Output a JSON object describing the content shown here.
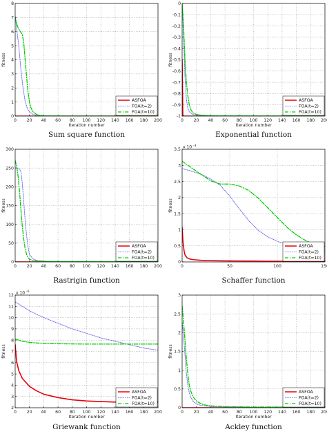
{
  "figure_captions": [
    "Sum square function",
    "Exponential function",
    "Rastrigin function",
    "Schaffer function",
    "Griewank function",
    "Ackley function"
  ],
  "styles": {
    "ASFOA": {
      "color": "#e8000b",
      "dash": "",
      "width": 1.6
    },
    "FOA(t=2)": {
      "color": "#6c6cf0",
      "dash": "1.2,1.4",
      "width": 1
    },
    "FOA(t=10)": {
      "color": "#00cc00",
      "dash": "5,2,1.2,2",
      "width": 1.3
    }
  },
  "chart_data": [
    {
      "type": "line",
      "caption": "Sum square function",
      "xlabel": "Iteration number",
      "ylabel": "fitness",
      "xlim": [
        0,
        200
      ],
      "ylim": [
        0,
        8
      ],
      "xticks": [
        0,
        20,
        40,
        60,
        80,
        100,
        120,
        140,
        160,
        180,
        200
      ],
      "yticks": [
        0,
        1,
        2,
        3,
        4,
        5,
        6,
        7,
        8
      ],
      "exponent_label": "",
      "grid": true,
      "legend": "bottom-right",
      "series": [
        {
          "name": "ASFOA",
          "x": [
            0,
            200
          ],
          "y": [
            0,
            0
          ]
        },
        {
          "name": "FOA(t=2)",
          "x": [
            0,
            5,
            8,
            11,
            14,
            17,
            20,
            25,
            30,
            40,
            60,
            100,
            200
          ],
          "y": [
            7.1,
            5.0,
            3.3,
            2.0,
            1.05,
            0.55,
            0.3,
            0.12,
            0.05,
            0.02,
            0.01,
            0.005,
            0.0
          ]
        },
        {
          "name": "FOA(t=10)",
          "x": [
            0,
            3,
            6,
            10,
            12,
            14,
            16,
            18,
            20,
            22,
            25,
            30,
            35,
            40,
            60,
            100,
            200
          ],
          "y": [
            7.0,
            6.4,
            6.1,
            5.8,
            5.2,
            4.0,
            2.8,
            1.7,
            1.0,
            0.6,
            0.3,
            0.12,
            0.05,
            0.03,
            0.01,
            0.005,
            0.0
          ]
        }
      ]
    },
    {
      "type": "line",
      "caption": "Exponential function",
      "xlabel": "Iteration number",
      "ylabel": "fitness",
      "xlim": [
        0,
        200
      ],
      "ylim": [
        -1,
        0
      ],
      "xticks": [
        0,
        20,
        40,
        60,
        80,
        100,
        120,
        140,
        160,
        180,
        200
      ],
      "yticks": [
        -1,
        -0.9,
        -0.8,
        -0.7,
        -0.6,
        -0.5,
        -0.4,
        -0.3,
        -0.2,
        -0.1,
        0
      ],
      "exponent_label": "",
      "grid": true,
      "legend": "bottom-right",
      "series": [
        {
          "name": "ASFOA",
          "x": [
            0,
            1,
            2,
            200
          ],
          "y": [
            -0.5,
            -0.99,
            -1.0,
            -1.0
          ]
        },
        {
          "name": "FOA(t=2)",
          "x": [
            0,
            2,
            4,
            6,
            8,
            10,
            15,
            20,
            30,
            50,
            200
          ],
          "y": [
            0.0,
            -0.3,
            -0.65,
            -0.85,
            -0.93,
            -0.96,
            -0.985,
            -0.992,
            -0.996,
            -0.998,
            -0.999
          ]
        },
        {
          "name": "FOA(t=10)",
          "x": [
            0,
            2,
            4,
            6,
            8,
            10,
            12,
            15,
            20,
            25,
            30,
            50,
            200
          ],
          "y": [
            0.0,
            -0.2,
            -0.5,
            -0.7,
            -0.82,
            -0.9,
            -0.94,
            -0.97,
            -0.985,
            -0.99,
            -0.993,
            -0.997,
            -0.999
          ]
        }
      ]
    },
    {
      "type": "line",
      "caption": "Rastrigin function",
      "xlabel": "",
      "ylabel": "fitness",
      "xlim": [
        0,
        200
      ],
      "ylim": [
        0,
        300
      ],
      "xticks": [
        0,
        20,
        40,
        60,
        80,
        100,
        120,
        140,
        160,
        180,
        200
      ],
      "yticks": [
        0,
        50,
        100,
        150,
        200,
        250,
        300
      ],
      "exponent_label": "",
      "grid": true,
      "legend": "bottom-right",
      "series": [
        {
          "name": "ASFOA",
          "x": [
            0,
            200
          ],
          "y": [
            0,
            0
          ]
        },
        {
          "name": "FOA(t=2)",
          "x": [
            0,
            3,
            6,
            8,
            10,
            12,
            14,
            16,
            18,
            20,
            25,
            30,
            40,
            60,
            200
          ],
          "y": [
            250,
            250,
            248,
            240,
            210,
            160,
            110,
            70,
            40,
            20,
            8,
            4,
            2,
            1,
            0.5
          ]
        },
        {
          "name": "FOA(t=10)",
          "x": [
            0,
            2,
            4,
            6,
            8,
            10,
            12,
            14,
            16,
            18,
            20,
            25,
            30,
            40,
            60,
            200
          ],
          "y": [
            270,
            255,
            230,
            190,
            140,
            95,
            60,
            35,
            20,
            12,
            7,
            4,
            2.5,
            1.5,
            1,
            0.5
          ]
        }
      ]
    },
    {
      "type": "line",
      "caption": "Schaffer function",
      "xlabel": "",
      "ylabel": "fitness",
      "xlim": [
        0,
        150
      ],
      "ylim": [
        0,
        0.0035
      ],
      "xticks": [
        0,
        50,
        100,
        150
      ],
      "yticks": [
        0,
        0.0005,
        0.001,
        0.0015,
        0.002,
        0.0025,
        0.003,
        0.0035
      ],
      "ytick_labels": [
        "0",
        "0.5",
        "1",
        "1.5",
        "2",
        "2.5",
        "3",
        "3.5"
      ],
      "exponent_label": "x 10",
      "exponent_power": "-3",
      "grid": true,
      "legend": "bottom-right",
      "series": [
        {
          "name": "ASFOA",
          "x": [
            0,
            1,
            2,
            3,
            5,
            8,
            12,
            20,
            30,
            50,
            80,
            100,
            150
          ],
          "y": [
            0.00108,
            0.0006,
            0.00035,
            0.00022,
            0.00013,
            9e-05,
            7e-05,
            5e-05,
            4e-05,
            3e-05,
            2.5e-05,
            2e-05,
            2e-05
          ]
        },
        {
          "name": "FOA(t=2)",
          "x": [
            0,
            10,
            20,
            30,
            40,
            50,
            60,
            70,
            80,
            90,
            100,
            110,
            120,
            130,
            140,
            150
          ],
          "y": [
            0.0029,
            0.00282,
            0.00272,
            0.00258,
            0.00238,
            0.00205,
            0.00165,
            0.00128,
            0.00098,
            0.00078,
            0.00064,
            0.00054,
            0.00046,
            0.0004,
            0.00036,
            0.00034
          ]
        },
        {
          "name": "FOA(t=10)",
          "x": [
            0,
            10,
            20,
            30,
            40,
            50,
            60,
            70,
            80,
            90,
            100,
            110,
            120,
            130,
            140,
            150
          ],
          "y": [
            0.00313,
            0.00292,
            0.00272,
            0.00252,
            0.00242,
            0.00242,
            0.00236,
            0.00222,
            0.00198,
            0.00168,
            0.00138,
            0.00108,
            0.00084,
            0.00066,
            0.00054,
            0.00048
          ]
        }
      ]
    },
    {
      "type": "line",
      "caption": "Griewank function",
      "xlabel": "Iteration number",
      "ylabel": "fitness",
      "xlim": [
        0,
        200
      ],
      "ylim": [
        2e-06,
        1.2e-05
      ],
      "xticks": [
        0,
        20,
        40,
        60,
        80,
        100,
        120,
        140,
        160,
        180,
        200
      ],
      "yticks": [
        2e-06,
        3e-06,
        4e-06,
        5e-06,
        6e-06,
        7e-06,
        8e-06,
        9e-06,
        1e-05,
        1.1e-05,
        1.2e-05
      ],
      "ytick_labels": [
        "2",
        "3",
        "4",
        "5",
        "6",
        "7",
        "8",
        "9",
        "10",
        "11",
        "12"
      ],
      "exponent_label": "x 10",
      "exponent_power": "-6",
      "grid": true,
      "legend": "bottom-right",
      "series": [
        {
          "name": "ASFOA",
          "x": [
            0,
            2,
            5,
            10,
            20,
            30,
            40,
            60,
            80,
            100,
            120,
            140,
            160,
            180,
            200
          ],
          "y": [
            7.6e-06,
            6.1e-06,
            5.3e-06,
            4.6e-06,
            3.9e-06,
            3.5e-06,
            3.2e-06,
            2.9e-06,
            2.7e-06,
            2.6e-06,
            2.55e-06,
            2.5e-06,
            2.5e-06,
            2.5e-06,
            2.5e-06
          ]
        },
        {
          "name": "FOA(t=2)",
          "x": [
            0,
            20,
            40,
            60,
            80,
            100,
            120,
            140,
            160,
            180,
            200
          ],
          "y": [
            1.14e-05,
            1.06e-05,
            1e-05,
            9.5e-06,
            9e-06,
            8.6e-06,
            8.2e-06,
            7.9e-06,
            7.6e-06,
            7.3e-06,
            7.1e-06
          ]
        },
        {
          "name": "FOA(t=10)",
          "x": [
            0,
            10,
            20,
            40,
            60,
            100,
            140,
            200
          ],
          "y": [
            8.1e-06,
            7.9e-06,
            7.8e-06,
            7.7e-06,
            7.68e-06,
            7.65e-06,
            7.65e-06,
            7.65e-06
          ]
        }
      ]
    },
    {
      "type": "line",
      "caption": "Ackley function",
      "xlabel": "Iteration number",
      "ylabel": "fitness",
      "xlim": [
        0,
        200
      ],
      "ylim": [
        0,
        3
      ],
      "xticks": [
        0,
        20,
        40,
        60,
        80,
        100,
        120,
        140,
        160,
        180,
        200
      ],
      "yticks": [
        0,
        0.5,
        1,
        1.5,
        2,
        2.5,
        3
      ],
      "exponent_label": "",
      "grid": true,
      "legend": "bottom-right",
      "series": [
        {
          "name": "ASFOA",
          "x": [
            0,
            200
          ],
          "y": [
            0,
            0
          ]
        },
        {
          "name": "FOA(t=2)",
          "x": [
            0,
            2,
            4,
            6,
            8,
            10,
            12,
            15,
            20,
            25,
            30,
            40,
            60,
            100,
            200
          ],
          "y": [
            2.3,
            1.9,
            1.4,
            0.9,
            0.6,
            0.4,
            0.28,
            0.18,
            0.1,
            0.07,
            0.05,
            0.03,
            0.02,
            0.01,
            0.01
          ]
        },
        {
          "name": "FOA(t=10)",
          "x": [
            0,
            2,
            4,
            6,
            8,
            10,
            12,
            15,
            20,
            25,
            30,
            40,
            60,
            100,
            200
          ],
          "y": [
            2.7,
            2.3,
            1.8,
            1.3,
            0.9,
            0.6,
            0.45,
            0.3,
            0.18,
            0.12,
            0.08,
            0.05,
            0.03,
            0.02,
            0.02
          ]
        }
      ]
    }
  ]
}
